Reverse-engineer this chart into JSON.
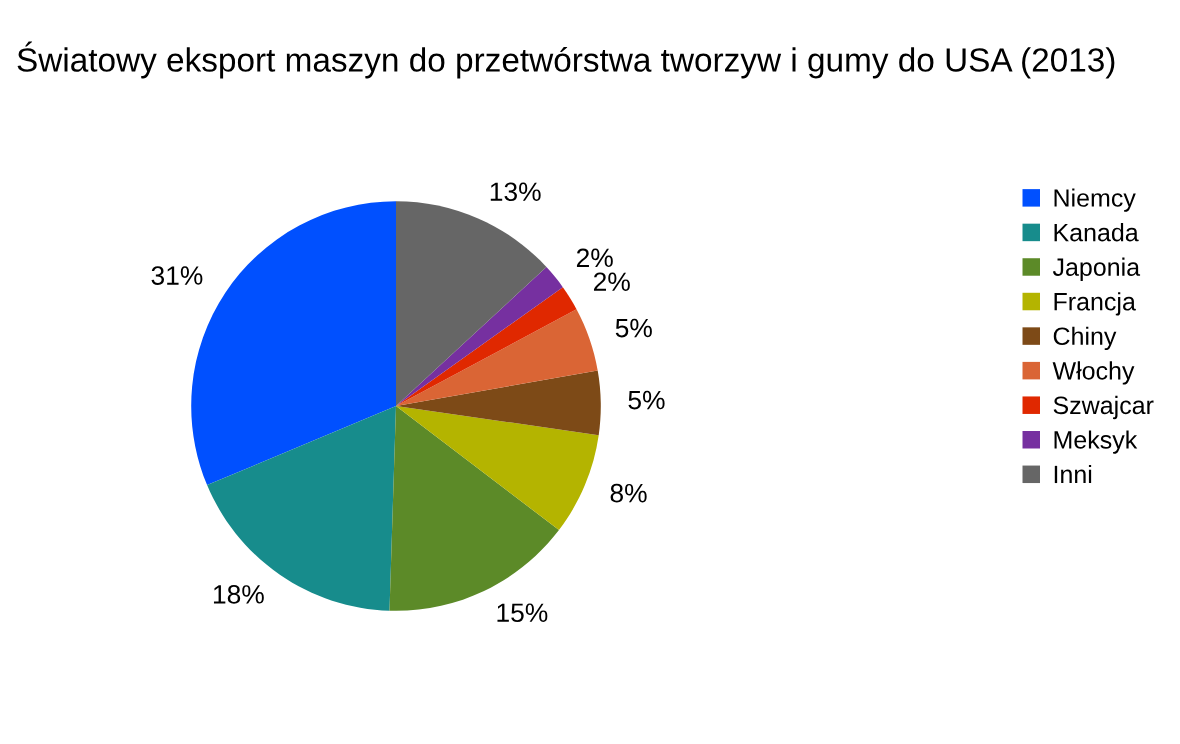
{
  "chart_data": {
    "type": "pie",
    "title": "Światowy eksport maszyn do przetwórstwa tworzyw i gumy do USA (2013)",
    "categories": [
      "Niemcy",
      "Kanada",
      "Japonia",
      "Francja",
      "Chiny",
      "Włochy",
      "Szwajcar",
      "Meksyk",
      "Inni"
    ],
    "values": [
      31,
      18,
      15,
      8,
      5,
      5,
      2,
      2,
      13
    ],
    "colors": [
      "#0050ff",
      "#178c8c",
      "#5c8a28",
      "#b4b400",
      "#7d4a17",
      "#da6535",
      "#e02800",
      "#7630a0",
      "#666666"
    ],
    "value_labels": [
      "31%",
      "18%",
      "15%",
      "8%",
      "5%",
      "5%",
      "2%",
      "2%",
      "13%"
    ],
    "legend": "right"
  }
}
